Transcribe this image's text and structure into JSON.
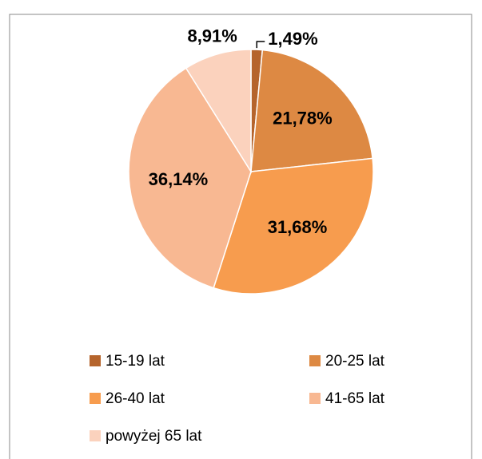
{
  "chart_data": {
    "type": "pie",
    "categories": [
      "15-19 lat",
      "20-25 lat",
      "26-40 lat",
      "41-65 lat",
      "powyżej 65 lat"
    ],
    "values": [
      1.49,
      21.78,
      31.68,
      36.14,
      8.91
    ],
    "value_labels": [
      "1,49%",
      "21,78%",
      "31,68%",
      "36,14%",
      "8,91%"
    ],
    "colors": [
      "#b5642c",
      "#dd8943",
      "#f79c4e",
      "#f8b892",
      "#fbd2bd"
    ]
  }
}
